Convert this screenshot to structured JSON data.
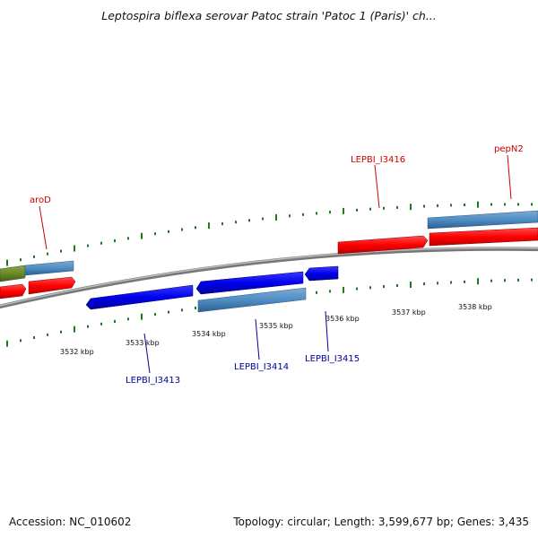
{
  "title": "Leptospira biflexa serovar Patoc strain 'Patoc 1 (Paris)' ch...",
  "footer": {
    "accession": "Accession: NC_010602",
    "summary": "Topology: circular; Length: 3,599,677 bp; Genes: 3,435"
  },
  "colors": {
    "forward_cds": "#ff0000",
    "reverse_cds": "#0000ee",
    "rna_feature": "#4f8ec4",
    "other_feature": "#6a8a2a",
    "tick": "#1e7a1e",
    "backbone": "#888888",
    "forward_label": "#cc0000",
    "reverse_label": "#000099"
  },
  "scale_labels": [
    "3532 kbp",
    "3533 kbp",
    "3534 kbp",
    "3535 kbp",
    "3536 kbp",
    "3537 kbp",
    "3538 kbp"
  ],
  "gene_labels": {
    "forward": [
      "aroD",
      "LEPBI_I3416",
      "pepN2"
    ],
    "reverse": [
      "LEPBI_I3413",
      "LEPBI_I3414",
      "LEPBI_I3415"
    ]
  }
}
